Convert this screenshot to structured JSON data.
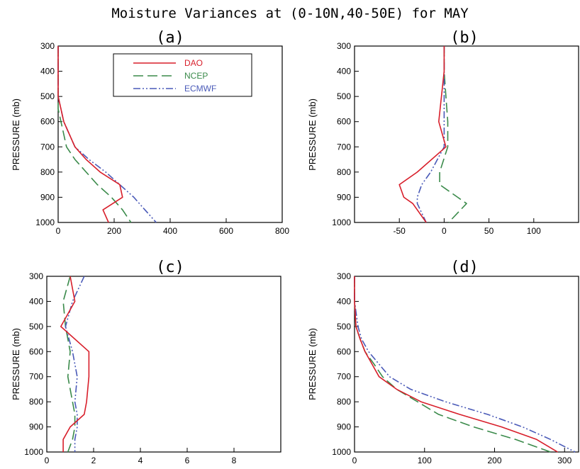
{
  "title": "Moisture Variances at (0-10N,40-50E) for MAY",
  "legend": [
    {
      "label": "DAO",
      "color": "#d81e2a",
      "dash": "solid"
    },
    {
      "label": "NCEP",
      "color": "#3a8a4a",
      "dash": "long-dash"
    },
    {
      "label": "ECMWF",
      "color": "#4a5ab8",
      "dash": "dash-dot-dot"
    }
  ],
  "ylabel": "PRESSURE (mb)",
  "chart_data": [
    {
      "panel": "(a)",
      "type": "line",
      "ylabel": "PRESSURE (mb)",
      "xlim": [
        0,
        800
      ],
      "ylim": [
        1000,
        300
      ],
      "y_inverted": true,
      "xticks": [
        0,
        200,
        400,
        600,
        800
      ],
      "yticks": [
        300,
        400,
        500,
        600,
        700,
        800,
        900,
        1000
      ],
      "legend_position": "top-left",
      "y": [
        300,
        350,
        400,
        450,
        500,
        550,
        600,
        650,
        700,
        750,
        800,
        850,
        900,
        950,
        1000
      ],
      "series": [
        {
          "name": "DAO",
          "x": [
            0,
            0,
            0,
            0,
            0,
            10,
            20,
            40,
            60,
            100,
            150,
            220,
            230,
            160,
            180
          ]
        },
        {
          "name": "NCEP",
          "x": [
            0,
            0,
            0,
            0,
            0,
            0,
            10,
            20,
            30,
            60,
            100,
            140,
            190,
            230,
            260
          ]
        },
        {
          "name": "ECMWF",
          "x": [
            0,
            0,
            0,
            0,
            0,
            10,
            20,
            40,
            60,
            110,
            170,
            220,
            270,
            310,
            350
          ]
        }
      ]
    },
    {
      "panel": "(b)",
      "type": "line",
      "ylabel": "PRESSURE (mb)",
      "xlim": [
        -100,
        150
      ],
      "ylim": [
        1000,
        300
      ],
      "y_inverted": true,
      "xticks": [
        -50,
        0,
        50,
        100
      ],
      "yticks": [
        300,
        400,
        500,
        600,
        700,
        800,
        900,
        1000
      ],
      "y": [
        300,
        400,
        500,
        600,
        700,
        800,
        850,
        900,
        925,
        1000
      ],
      "series": [
        {
          "name": "DAO",
          "x": [
            0,
            0,
            -3,
            -6,
            2,
            -30,
            -50,
            -45,
            -35,
            -20
          ]
        },
        {
          "name": "NCEP",
          "x": [
            0,
            0,
            2,
            4,
            4,
            -5,
            -5,
            15,
            25,
            5
          ]
        },
        {
          "name": "ECMWF",
          "x": [
            0,
            0,
            0,
            0,
            0,
            -15,
            -25,
            -30,
            -30,
            -20
          ]
        }
      ]
    },
    {
      "panel": "(c)",
      "type": "line",
      "ylabel": "PRESSURE (mb)",
      "xlim": [
        0,
        10
      ],
      "ylim": [
        1000,
        300
      ],
      "y_inverted": true,
      "xticks": [
        0,
        2,
        4,
        6,
        8
      ],
      "yticks": [
        300,
        400,
        500,
        600,
        700,
        800,
        900,
        1000
      ],
      "y": [
        300,
        400,
        500,
        600,
        700,
        800,
        850,
        900,
        950,
        1000
      ],
      "series": [
        {
          "name": "DAO",
          "x": [
            1.0,
            1.2,
            0.6,
            1.8,
            1.8,
            1.7,
            1.6,
            1.0,
            0.7,
            0.7
          ]
        },
        {
          "name": "NCEP",
          "x": [
            1.0,
            0.7,
            0.8,
            1.0,
            0.9,
            1.1,
            1.2,
            1.2,
            1.1,
            0.9
          ]
        },
        {
          "name": "ECMWF",
          "x": [
            1.6,
            1.1,
            0.8,
            1.1,
            1.3,
            1.2,
            1.3,
            1.3,
            1.2,
            1.2
          ]
        }
      ]
    },
    {
      "panel": "(d)",
      "type": "line",
      "ylabel": "PRESSURE (mb)",
      "xlim": [
        0,
        320
      ],
      "ylim": [
        1000,
        300
      ],
      "y_inverted": true,
      "xticks": [
        0,
        100,
        200,
        300
      ],
      "yticks": [
        300,
        400,
        500,
        600,
        700,
        800,
        900,
        1000
      ],
      "y": [
        300,
        400,
        500,
        550,
        600,
        650,
        700,
        750,
        800,
        850,
        900,
        950,
        1000
      ],
      "series": [
        {
          "name": "DAO",
          "x": [
            0,
            0,
            2,
            8,
            15,
            25,
            35,
            60,
            95,
            150,
            210,
            260,
            290
          ]
        },
        {
          "name": "NCEP",
          "x": [
            0,
            0,
            2,
            8,
            15,
            28,
            40,
            60,
            90,
            120,
            170,
            230,
            280
          ]
        },
        {
          "name": "ECMWF",
          "x": [
            0,
            0,
            5,
            10,
            20,
            35,
            50,
            80,
            130,
            190,
            240,
            280,
            315
          ]
        }
      ]
    }
  ]
}
